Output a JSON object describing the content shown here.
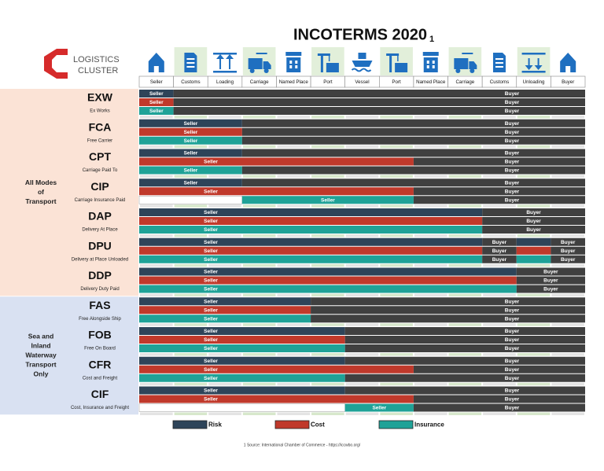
{
  "title": "INCOTERMS 2020",
  "title_note": "1",
  "logo": [
    "LOGISTICS",
    "CLUSTER"
  ],
  "columns": [
    "Seller",
    "Customs",
    "Loading",
    "Carriage",
    "Named Place",
    "Port",
    "Vessel",
    "Port",
    "Named Place",
    "Carriage",
    "Customs",
    "Unloading",
    "Buyer"
  ],
  "legend": [
    {
      "label": "Risk",
      "color": "#2e4459"
    },
    {
      "label": "Cost",
      "color": "#c0392b"
    },
    {
      "label": "Insurance",
      "color": "#1fa297"
    }
  ],
  "buyer_color": "#404040",
  "groups": [
    {
      "label": [
        "All Modes",
        "of",
        "Transport"
      ],
      "color": "#fbe3d6",
      "terms": [
        {
          "code": "EXW",
          "name": "Ex Works",
          "rows": [
            [
              {
                "party": "seller",
                "label": "Seller",
                "span": 1
              },
              {
                "party": "buyer",
                "label": "Buyer",
                "span": 12
              }
            ],
            [
              {
                "party": "seller",
                "label": "Seller",
                "span": 1
              },
              {
                "party": "buyer",
                "label": "Buyer",
                "span": 12
              }
            ],
            [
              {
                "party": "seller",
                "label": "Seller",
                "span": 1
              },
              {
                "party": "buyer",
                "label": "Buyer",
                "span": 12
              }
            ]
          ]
        },
        {
          "code": "FCA",
          "name": "Free Carrier",
          "rows": [
            [
              {
                "party": "seller",
                "label": "Seller",
                "span": 3
              },
              {
                "party": "buyer",
                "label": "Buyer",
                "span": 10
              }
            ],
            [
              {
                "party": "seller",
                "label": "Seller",
                "span": 3
              },
              {
                "party": "buyer",
                "label": "Buyer",
                "span": 10
              }
            ],
            [
              {
                "party": "seller",
                "label": "Seller",
                "span": 3
              },
              {
                "party": "buyer",
                "label": "Buyer",
                "span": 10
              }
            ]
          ]
        },
        {
          "code": "CPT",
          "name": "Carriage Paid To",
          "rows": [
            [
              {
                "party": "seller",
                "label": "Seller",
                "span": 3
              },
              {
                "party": "buyer",
                "label": "Buyer",
                "span": 10
              }
            ],
            [
              {
                "party": "seller",
                "label": "Seller",
                "span": 8
              },
              {
                "party": "buyer",
                "label": "Buyer",
                "span": 5
              }
            ],
            [
              {
                "party": "seller",
                "label": "Seller",
                "span": 3
              },
              {
                "party": "buyer",
                "label": "Buyer",
                "span": 10
              }
            ]
          ]
        },
        {
          "code": "CIP",
          "name": "Carriage Insurance Paid",
          "rows": [
            [
              {
                "party": "seller",
                "label": "Seller",
                "span": 3
              },
              {
                "party": "buyer",
                "label": "Buyer",
                "span": 10
              }
            ],
            [
              {
                "party": "seller",
                "label": "Seller",
                "span": 8
              },
              {
                "party": "buyer",
                "label": "Buyer",
                "span": 5
              }
            ],
            [
              {
                "party": "none",
                "span": 3
              },
              {
                "party": "seller",
                "label": "Seller",
                "span": 5
              },
              {
                "party": "buyer",
                "label": "Buyer",
                "span": 5
              }
            ]
          ]
        },
        {
          "code": "DAP",
          "name": "Delivery At Place",
          "rows": [
            [
              {
                "party": "seller",
                "label": "Seller",
                "span": 10
              },
              {
                "party": "buyer",
                "label": "Buyer",
                "span": 3
              }
            ],
            [
              {
                "party": "seller",
                "label": "Seller",
                "span": 10
              },
              {
                "party": "buyer",
                "label": "Buyer",
                "span": 3
              }
            ],
            [
              {
                "party": "seller",
                "label": "Seller",
                "span": 10
              },
              {
                "party": "buyer",
                "label": "Buyer",
                "span": 3
              }
            ]
          ]
        },
        {
          "code": "DPU",
          "name": "Delivery at Place Unloaded",
          "rows": [
            [
              {
                "party": "seller",
                "label": "Seller",
                "span": 10
              },
              {
                "party": "buyer",
                "label": "Buyer",
                "span": 1
              },
              {
                "party": "seller",
                "span": 1
              },
              {
                "party": "buyer",
                "label": "Buyer",
                "span": 1
              }
            ],
            [
              {
                "party": "seller",
                "label": "Seller",
                "span": 10
              },
              {
                "party": "buyer",
                "label": "Buyer",
                "span": 1
              },
              {
                "party": "seller",
                "span": 1
              },
              {
                "party": "buyer",
                "label": "Buyer",
                "span": 1
              }
            ],
            [
              {
                "party": "seller",
                "label": "Seller",
                "span": 10
              },
              {
                "party": "buyer",
                "label": "Buyer",
                "span": 1
              },
              {
                "party": "seller",
                "span": 1
              },
              {
                "party": "buyer",
                "label": "Buyer",
                "span": 1
              }
            ]
          ]
        },
        {
          "code": "DDP",
          "name": "Delivery Duty Paid",
          "rows": [
            [
              {
                "party": "seller",
                "label": "Seller",
                "span": 11
              },
              {
                "party": "buyer",
                "label": "Buyer",
                "span": 2
              }
            ],
            [
              {
                "party": "seller",
                "label": "Seller",
                "span": 11
              },
              {
                "party": "buyer",
                "label": "Buyer",
                "span": 2
              }
            ],
            [
              {
                "party": "seller",
                "label": "Seller",
                "span": 11
              },
              {
                "party": "buyer",
                "label": "Buyer",
                "span": 2
              }
            ]
          ]
        }
      ]
    },
    {
      "label": [
        "Sea and",
        "Inland",
        "Waterway",
        "Transport",
        "Only"
      ],
      "color": "#d9e1f2",
      "terms": [
        {
          "code": "FAS",
          "name": "Free Alongside Ship",
          "rows": [
            [
              {
                "party": "seller",
                "label": "Seller",
                "span": 5
              },
              {
                "party": "buyer",
                "label": "Buyer",
                "span": 8
              }
            ],
            [
              {
                "party": "seller",
                "label": "Seller",
                "span": 5
              },
              {
                "party": "buyer",
                "label": "Buyer",
                "span": 8
              }
            ],
            [
              {
                "party": "seller",
                "label": "Seller",
                "span": 5
              },
              {
                "party": "buyer",
                "label": "Buyer",
                "span": 8
              }
            ]
          ]
        },
        {
          "code": "FOB",
          "name": "Free On Board",
          "rows": [
            [
              {
                "party": "seller",
                "label": "Seller",
                "span": 6
              },
              {
                "party": "buyer",
                "label": "Buyer",
                "span": 7
              }
            ],
            [
              {
                "party": "seller",
                "label": "Seller",
                "span": 6
              },
              {
                "party": "buyer",
                "label": "Buyer",
                "span": 7
              }
            ],
            [
              {
                "party": "seller",
                "label": "Seller",
                "span": 6
              },
              {
                "party": "buyer",
                "label": "Buyer",
                "span": 7
              }
            ]
          ]
        },
        {
          "code": "CFR",
          "name": "Cost and Freight",
          "rows": [
            [
              {
                "party": "seller",
                "label": "Seller",
                "span": 6
              },
              {
                "party": "buyer",
                "label": "Buyer",
                "span": 7
              }
            ],
            [
              {
                "party": "seller",
                "label": "Seller",
                "span": 8
              },
              {
                "party": "buyer",
                "label": "Buyer",
                "span": 5
              }
            ],
            [
              {
                "party": "seller",
                "label": "Seller",
                "span": 6
              },
              {
                "party": "buyer",
                "label": "Buyer",
                "span": 7
              }
            ]
          ]
        },
        {
          "code": "CIF",
          "name": "Cost, Insurance and Freight",
          "rows": [
            [
              {
                "party": "seller",
                "label": "Seller",
                "span": 6
              },
              {
                "party": "buyer",
                "label": "Buyer",
                "span": 7
              }
            ],
            [
              {
                "party": "seller",
                "label": "Seller",
                "span": 8
              },
              {
                "party": "buyer",
                "label": "Buyer",
                "span": 5
              }
            ],
            [
              {
                "party": "none",
                "span": 6
              },
              {
                "party": "seller",
                "label": "Seller",
                "span": 2
              },
              {
                "party": "buyer",
                "label": "Buyer",
                "span": 5
              }
            ]
          ]
        }
      ]
    }
  ],
  "footnote": "1 Source: International Chamber of Commerce - https://iccwbo.org/"
}
